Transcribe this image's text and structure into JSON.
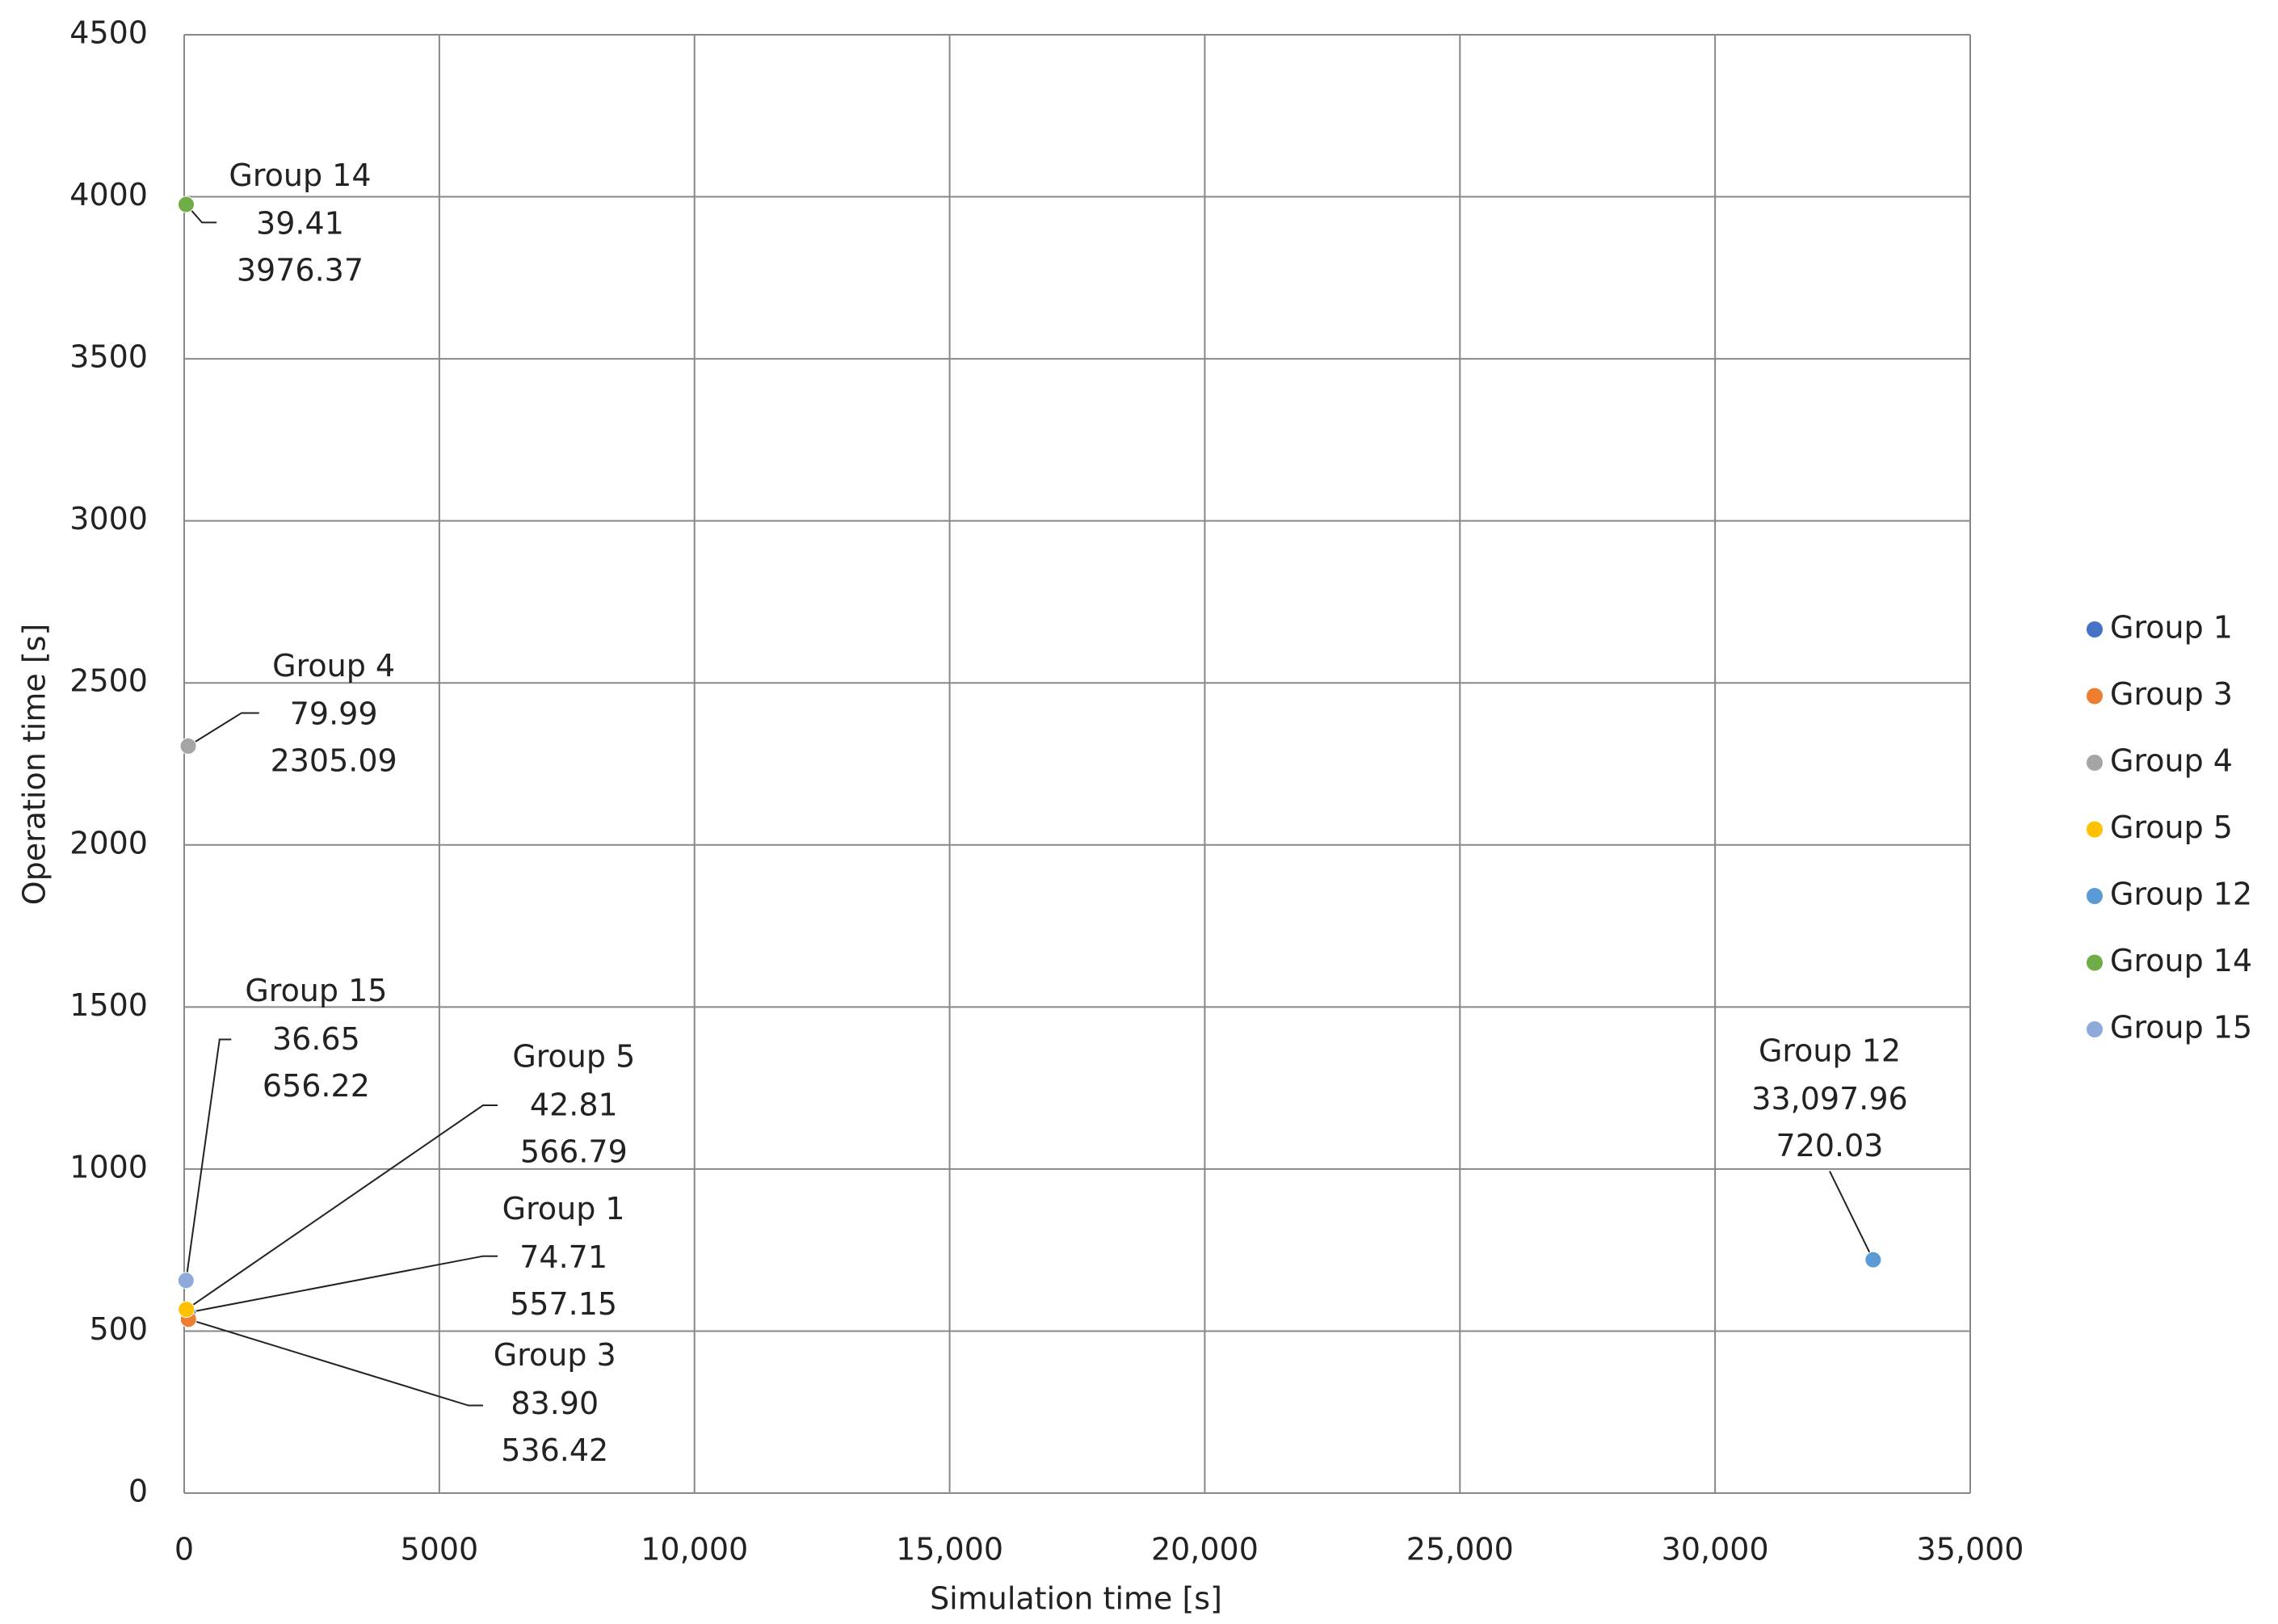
{
  "chart_data": {
    "type": "scatter",
    "x_label": "Simulation time [s]",
    "y_label": "Operation time [s]",
    "xlim": [
      0,
      35000
    ],
    "xticks": [
      0,
      5000,
      {
        "value": 10000,
        "label": "10,000"
      },
      {
        "value": 15000,
        "label": "15,000"
      },
      {
        "value": 20000,
        "label": "20,000"
      },
      {
        "value": 25000,
        "label": "25,000"
      },
      {
        "value": 30000,
        "label": "30,000"
      },
      {
        "value": 35000,
        "label": "35,000"
      }
    ],
    "ylim": [
      0,
      4500
    ],
    "yticks": [
      0,
      500,
      1000,
      1500,
      2000,
      2500,
      3000,
      3500,
      4000,
      4500
    ],
    "grid": true,
    "legend": "right",
    "series": [
      {
        "name": "Group 1",
        "color": "#4472c4",
        "x": [
          74.71
        ],
        "y": [
          557.15
        ]
      },
      {
        "name": "Group 3",
        "color": "#ed7d31",
        "x": [
          83.9
        ],
        "x_labels": [
          "83.90"
        ],
        "y": [
          536.42
        ]
      },
      {
        "name": "Group 4",
        "color": "#a5a5a5",
        "x": [
          79.99
        ],
        "y": [
          2305.09
        ]
      },
      {
        "name": "Group 5",
        "color": "#ffc000",
        "x": [
          42.81
        ],
        "y": [
          566.79
        ]
      },
      {
        "name": "Group 12",
        "color": "#5b9bd5",
        "x": [
          33097.96
        ],
        "x_labels": [
          "33,097.96"
        ],
        "y": [
          720.03
        ]
      },
      {
        "name": "Group 14",
        "color": "#70ad47",
        "x": [
          39.41
        ],
        "y": [
          3976.37
        ]
      },
      {
        "name": "Group 15",
        "color": "#8eaadb",
        "x": [
          36.65
        ],
        "y": [
          656.22
        ]
      }
    ]
  }
}
